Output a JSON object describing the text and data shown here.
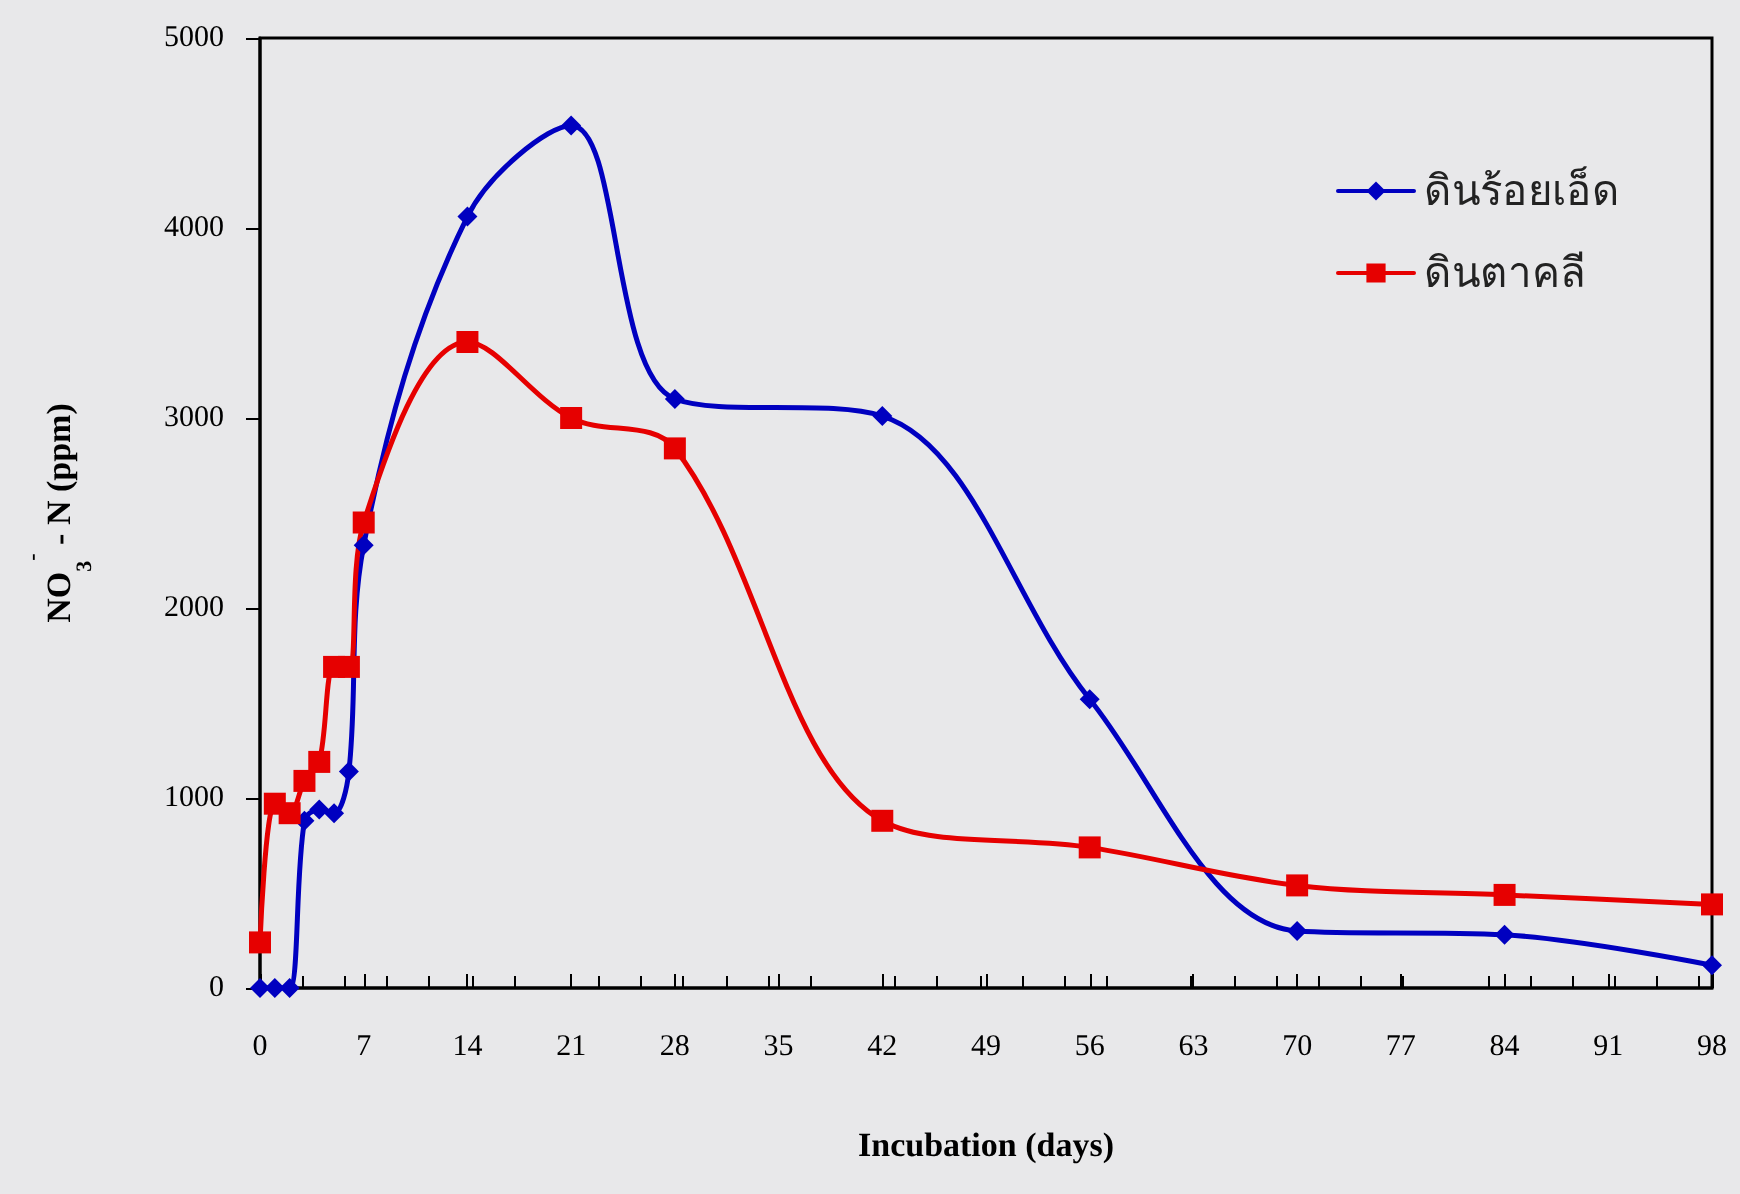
{
  "chart_data": {
    "type": "line",
    "xlabel": "Incubation (days)",
    "ylabel": "NO$_{3}$$^{-}$ - N (ppm)",
    "xlim": [
      0,
      98
    ],
    "xticks": [
      0,
      7,
      14,
      21,
      28,
      35,
      42,
      49,
      56,
      63,
      70,
      77,
      84,
      91,
      98
    ],
    "ylim": [
      0,
      5000
    ],
    "yticks": [
      0,
      1000,
      2000,
      3000,
      4000,
      5000
    ],
    "grid": false,
    "legend": "top right",
    "line_style": "solid",
    "series": [
      {
        "name": "ดินร้อยเอ็ด",
        "color": "#0000c0",
        "marker": "diamond",
        "x": [
          0,
          1,
          2,
          3,
          4,
          5,
          6,
          7,
          14,
          21,
          28,
          42,
          56,
          70,
          84,
          98
        ],
        "values": [
          0,
          0,
          0,
          880,
          940,
          920,
          1140,
          2330,
          4060,
          4540,
          3100,
          3010,
          1520,
          300,
          280,
          120
        ]
      },
      {
        "name": "ดินตาคลี",
        "color": "#e60000",
        "marker": "square",
        "x": [
          0,
          1,
          2,
          3,
          4,
          5,
          6,
          7,
          14,
          21,
          28,
          42,
          56,
          70,
          84,
          98
        ],
        "values": [
          240,
          970,
          920,
          1090,
          1190,
          1690,
          1690,
          2450,
          3400,
          3000,
          2840,
          880,
          740,
          540,
          490,
          440
        ]
      }
    ]
  }
}
